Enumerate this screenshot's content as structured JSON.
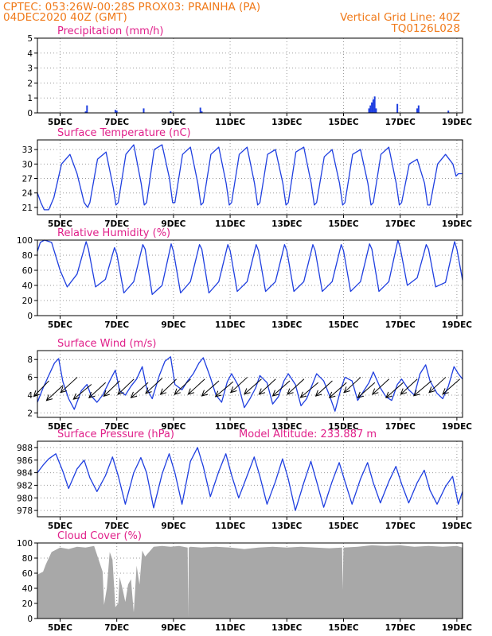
{
  "header": {
    "line1_left": "CPTEC:   053:26W-00:28S   PROX03: PRAINHA (PA)",
    "line2_left": "04DEC2020 40Z (GMT)",
    "line1_right": "Vertical Grid Line: 40Z",
    "line2_right": "TQ0126L028"
  },
  "colors": {
    "header": "#f07a1a",
    "title": "#e0208a",
    "series": "#1f3fe0",
    "cloud": "#a8a8a8",
    "grid": "#9a9a9a"
  },
  "x_axis": {
    "tick_labels": [
      "5DEC",
      "7DEC",
      "9DEC",
      "11DEC",
      "13DEC",
      "15DEC",
      "17DEC",
      "19DEC"
    ],
    "tick_days": [
      5,
      7,
      9,
      11,
      13,
      15,
      17,
      19
    ],
    "range_days": [
      4.2,
      19.2
    ]
  },
  "chart_data": [
    {
      "type": "bar",
      "title": "Precipitation (mm/h)",
      "ylim": [
        0,
        5
      ],
      "yticks": [
        0,
        1,
        2,
        3,
        4,
        5
      ],
      "x": [
        5.9,
        5.95,
        6.95,
        7.0,
        7.95,
        8.9,
        9.95,
        10.0,
        15.9,
        15.95,
        16.0,
        16.05,
        16.1,
        16.15,
        16.9,
        17.6,
        17.65,
        18.7
      ],
      "values": [
        0.1,
        0.5,
        0.2,
        0.15,
        0.3,
        0.1,
        0.35,
        0.1,
        0.3,
        0.5,
        0.7,
        0.9,
        1.1,
        0.3,
        0.6,
        0.3,
        0.5,
        0.15
      ]
    },
    {
      "type": "line",
      "title": "Surface Temperature (nC)",
      "ylim": [
        19.5,
        35
      ],
      "yticks": [
        21,
        24,
        27,
        30,
        33
      ],
      "x": [
        4.2,
        4.32,
        4.44,
        4.6,
        4.78,
        5.05,
        5.35,
        5.6,
        5.85,
        5.97,
        6.05,
        6.32,
        6.62,
        6.88,
        6.97,
        7.05,
        7.32,
        7.6,
        7.86,
        7.97,
        8.05,
        8.32,
        8.6,
        8.86,
        8.97,
        9.05,
        9.32,
        9.6,
        9.86,
        9.97,
        10.05,
        10.32,
        10.6,
        10.86,
        10.97,
        11.05,
        11.32,
        11.6,
        11.86,
        11.97,
        12.05,
        12.32,
        12.6,
        12.86,
        12.97,
        13.05,
        13.32,
        13.6,
        13.86,
        13.97,
        14.05,
        14.32,
        14.6,
        14.86,
        14.97,
        15.05,
        15.32,
        15.6,
        15.86,
        15.97,
        16.05,
        16.32,
        16.6,
        16.86,
        16.97,
        17.05,
        17.32,
        17.6,
        17.86,
        17.97,
        18.05,
        18.32,
        18.6,
        18.86,
        18.97,
        19.05,
        19.2
      ],
      "values": [
        24,
        22,
        20.5,
        20.5,
        23,
        30,
        32,
        28,
        22,
        21,
        22,
        31,
        32.5,
        25,
        21.5,
        22,
        32,
        34,
        26,
        21.5,
        22,
        33,
        34,
        27,
        22,
        22,
        32,
        33.5,
        26,
        21.5,
        22,
        32,
        33.5,
        26,
        21.5,
        22,
        32,
        33.5,
        26,
        21.5,
        22,
        32,
        33,
        26,
        21.5,
        22,
        32.5,
        33.5,
        26,
        21.5,
        22,
        31.5,
        33,
        26,
        21.5,
        22,
        32,
        33,
        26,
        21.5,
        22,
        32,
        33.5,
        26,
        21.5,
        22,
        30,
        31,
        26,
        21.5,
        21.5,
        30,
        32,
        30,
        27.5,
        28,
        28
      ]
    },
    {
      "type": "line",
      "title": "Relative Humidity (%)",
      "ylim": [
        0,
        100
      ],
      "yticks": [
        0,
        20,
        40,
        60,
        80,
        100
      ],
      "x": [
        4.2,
        4.3,
        4.45,
        4.7,
        5.0,
        5.25,
        5.6,
        5.92,
        6.0,
        6.25,
        6.6,
        6.92,
        7.0,
        7.25,
        7.6,
        7.92,
        8.0,
        8.25,
        8.6,
        8.92,
        9.0,
        9.25,
        9.6,
        9.92,
        10.0,
        10.25,
        10.6,
        10.92,
        11.0,
        11.25,
        11.6,
        11.92,
        12.0,
        12.25,
        12.6,
        12.92,
        13.0,
        13.25,
        13.6,
        13.92,
        14.0,
        14.25,
        14.6,
        14.92,
        15.0,
        15.25,
        15.6,
        15.92,
        16.0,
        16.25,
        16.6,
        16.92,
        17.0,
        17.25,
        17.6,
        17.92,
        18.0,
        18.25,
        18.6,
        18.92,
        19.0,
        19.2
      ],
      "values": [
        85,
        97,
        100,
        97,
        60,
        38,
        55,
        98,
        88,
        38,
        48,
        90,
        82,
        30,
        45,
        94,
        88,
        28,
        40,
        95,
        85,
        30,
        45,
        94,
        88,
        30,
        45,
        94,
        86,
        32,
        45,
        94,
        86,
        32,
        45,
        94,
        86,
        32,
        45,
        94,
        86,
        32,
        45,
        94,
        86,
        32,
        45,
        95,
        88,
        32,
        45,
        100,
        90,
        40,
        50,
        94,
        88,
        38,
        44,
        98,
        88,
        47
      ]
    },
    {
      "type": "line",
      "title": "Surface Wind (m/s)",
      "ylim": [
        1.5,
        9
      ],
      "yticks": [
        2,
        4,
        6,
        8
      ],
      "x": [
        4.2,
        4.4,
        4.6,
        4.8,
        4.95,
        5.1,
        5.3,
        5.5,
        5.75,
        5.95,
        6.1,
        6.3,
        6.5,
        6.75,
        6.95,
        7.1,
        7.3,
        7.5,
        7.7,
        7.9,
        8.05,
        8.25,
        8.5,
        8.7,
        8.9,
        9.05,
        9.3,
        9.5,
        9.7,
        9.9,
        10.05,
        10.3,
        10.5,
        10.7,
        10.9,
        11.05,
        11.3,
        11.5,
        11.7,
        11.9,
        12.05,
        12.3,
        12.5,
        12.7,
        12.9,
        13.05,
        13.3,
        13.5,
        13.7,
        13.9,
        14.05,
        14.3,
        14.5,
        14.7,
        14.9,
        15.05,
        15.3,
        15.5,
        15.7,
        15.9,
        16.05,
        16.3,
        16.5,
        16.7,
        16.9,
        17.05,
        17.3,
        17.5,
        17.7,
        17.9,
        18.05,
        18.3,
        18.5,
        18.7,
        18.9,
        19.05,
        19.2
      ],
      "values": [
        3.2,
        4.8,
        6.2,
        7.6,
        8.1,
        5.5,
        3.6,
        2.4,
        4.5,
        5.2,
        3.9,
        3.2,
        4.0,
        5.6,
        6.8,
        4.5,
        4.0,
        5.0,
        5.8,
        7.2,
        4.8,
        3.6,
        6.2,
        7.8,
        8.3,
        5.2,
        4.6,
        5.6,
        6.4,
        7.6,
        8.2,
        6.0,
        4.0,
        3.2,
        5.5,
        6.4,
        5.0,
        2.6,
        3.6,
        4.8,
        6.2,
        5.4,
        3.0,
        3.8,
        5.6,
        6.4,
        5.2,
        2.8,
        3.6,
        5.2,
        6.4,
        5.6,
        4.0,
        2.2,
        4.6,
        6.0,
        5.6,
        3.4,
        4.4,
        5.4,
        6.6,
        4.8,
        3.8,
        3.4,
        5.2,
        5.8,
        4.6,
        4.0,
        6.4,
        7.4,
        5.6,
        4.2,
        3.6,
        5.0,
        7.2,
        6.4,
        5.8
      ],
      "wind_arrows_day": [
        4.35,
        4.85,
        5.35,
        5.85,
        6.35,
        6.85,
        7.35,
        7.85,
        8.35,
        8.85,
        9.35,
        9.85,
        10.35,
        10.85,
        11.35,
        11.85,
        12.35,
        12.85,
        13.35,
        13.85,
        14.35,
        14.85,
        15.35,
        15.85,
        16.35,
        16.85,
        17.35,
        17.85,
        18.35,
        18.85
      ],
      "wind_arrows_y": [
        4.8,
        4.3,
        5.2,
        4.4,
        4.6,
        4.8,
        5.0,
        4.6,
        5.1,
        5.0,
        5.0,
        5.0,
        4.8,
        4.7,
        5.2,
        5.0,
        5.0,
        4.8,
        5.0,
        4.6,
        4.8,
        4.6,
        5.2,
        4.6,
        5.0,
        4.6,
        5.0,
        4.8,
        5.2,
        5.0
      ],
      "wind_direction_deg": [
        65,
        60,
        60,
        55,
        60,
        62,
        62,
        58,
        60,
        62,
        62,
        60,
        58,
        56,
        60,
        58,
        60,
        58,
        60,
        56,
        60,
        58,
        60,
        58,
        60,
        58,
        60,
        56,
        60,
        58
      ]
    },
    {
      "type": "line",
      "title": "Surface Pressure (hPa)",
      "annotation": "Model Altitude: 233.887 m",
      "ylim": [
        977,
        989
      ],
      "yticks": [
        978,
        980,
        982,
        984,
        986,
        988
      ],
      "x": [
        4.2,
        4.4,
        4.6,
        4.85,
        5.1,
        5.3,
        5.6,
        5.85,
        6.05,
        6.3,
        6.6,
        6.85,
        7.05,
        7.3,
        7.6,
        7.85,
        8.05,
        8.3,
        8.6,
        8.85,
        9.05,
        9.3,
        9.6,
        9.85,
        10.05,
        10.3,
        10.6,
        10.85,
        11.05,
        11.3,
        11.6,
        11.85,
        12.05,
        12.3,
        12.6,
        12.85,
        13.05,
        13.3,
        13.6,
        13.85,
        14.05,
        14.3,
        14.6,
        14.85,
        15.05,
        15.3,
        15.6,
        15.85,
        16.05,
        16.3,
        16.6,
        16.85,
        17.05,
        17.3,
        17.6,
        17.85,
        18.05,
        18.3,
        18.6,
        18.85,
        19.05,
        19.2
      ],
      "values": [
        984,
        985.2,
        986.2,
        987.0,
        984.2,
        981.5,
        984.6,
        986.0,
        983.2,
        981.0,
        983.5,
        986.5,
        983.5,
        979.0,
        984.0,
        986.4,
        984.0,
        978.4,
        983.8,
        987.0,
        984.0,
        979.0,
        985.8,
        988.0,
        985.0,
        980.2,
        984.2,
        987.0,
        983.6,
        980.0,
        983.5,
        986.5,
        983.4,
        979.0,
        982.6,
        986.2,
        983.0,
        978.0,
        982.4,
        985.8,
        982.6,
        978.5,
        982.6,
        985.6,
        982.6,
        979.0,
        983.0,
        985.6,
        982.4,
        979.2,
        982.6,
        985.0,
        982.2,
        979.2,
        982.4,
        984.4,
        981.2,
        979.0,
        981.8,
        983.4,
        979.0,
        981.0
      ]
    },
    {
      "type": "area",
      "title": "Cloud Cover (%)",
      "ylim": [
        0,
        100
      ],
      "yticks": [
        0,
        20,
        40,
        60,
        80,
        100
      ],
      "x": [
        4.2,
        4.4,
        4.5,
        4.7,
        5.0,
        5.3,
        5.6,
        5.9,
        6.2,
        6.5,
        6.55,
        6.65,
        6.75,
        6.85,
        6.95,
        7.05,
        7.1,
        7.2,
        7.3,
        7.4,
        7.5,
        7.6,
        7.7,
        7.8,
        7.9,
        8.0,
        8.3,
        8.6,
        8.9,
        9.2,
        9.5,
        9.52,
        9.54,
        9.6,
        10.0,
        10.5,
        11.0,
        11.5,
        12.0,
        12.5,
        13.0,
        13.5,
        14.0,
        14.5,
        14.95,
        14.97,
        15.0,
        15.5,
        16.0,
        16.5,
        17.0,
        17.5,
        18.0,
        18.5,
        19.0,
        19.2
      ],
      "values": [
        58,
        62,
        72,
        88,
        94,
        92,
        95,
        94,
        96,
        62,
        18,
        40,
        88,
        78,
        15,
        20,
        55,
        40,
        22,
        45,
        52,
        8,
        70,
        45,
        90,
        82,
        95,
        96,
        95,
        96,
        94,
        2,
        94,
        95,
        94,
        95,
        94,
        92,
        94,
        95,
        94,
        95,
        94,
        93,
        94,
        38,
        94,
        95,
        97,
        96,
        97,
        95,
        96,
        95,
        96,
        94
      ]
    }
  ]
}
